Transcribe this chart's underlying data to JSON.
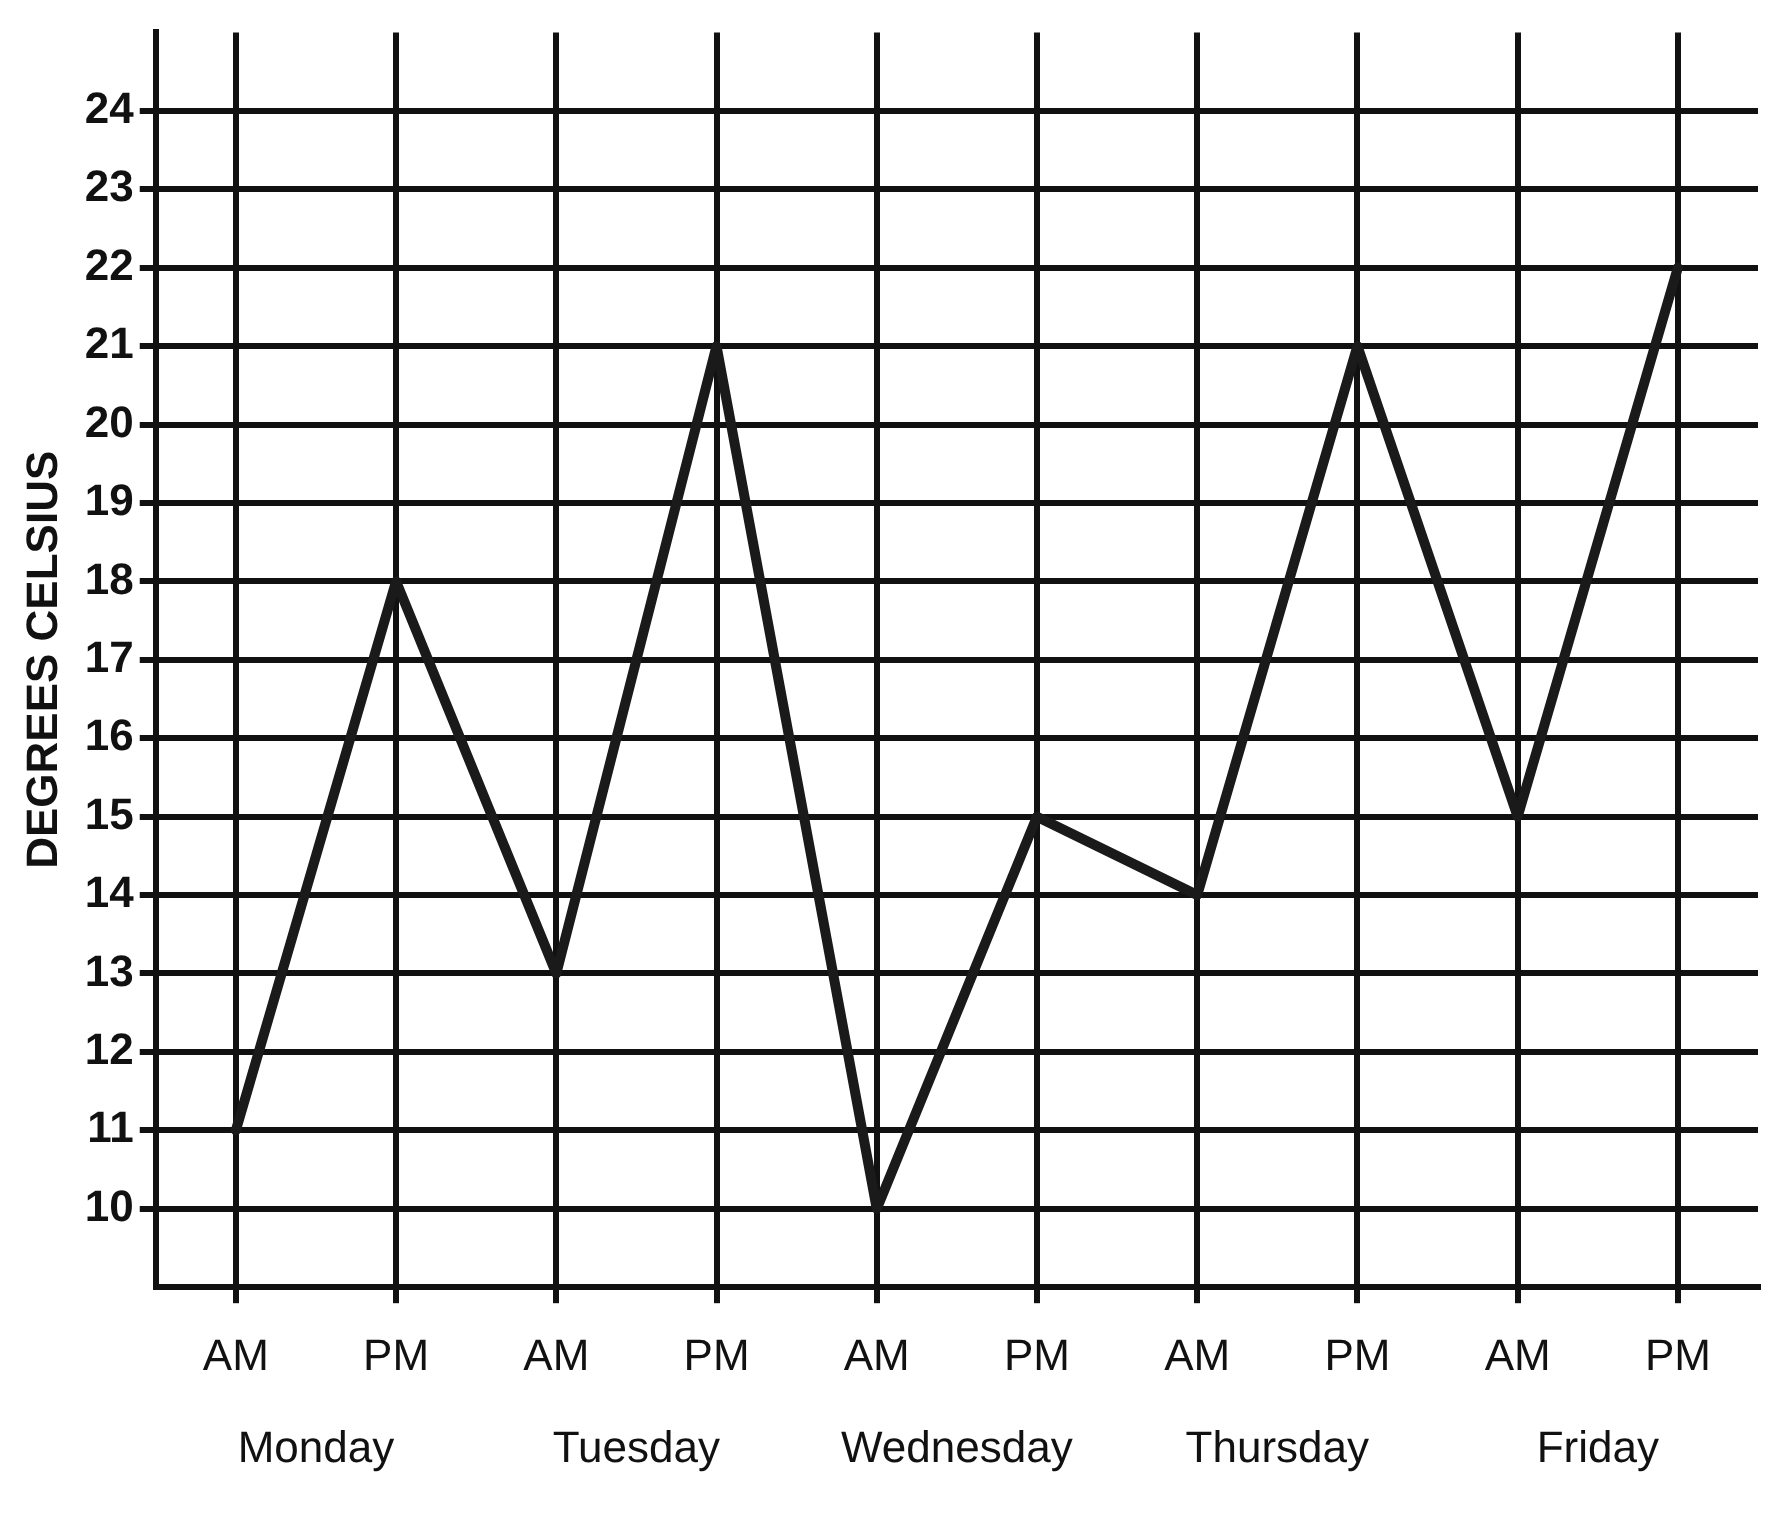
{
  "chart_data": {
    "type": "line",
    "ylabel": "DEGREES CELSIUS",
    "categories": [
      "AM",
      "PM",
      "AM",
      "PM",
      "AM",
      "PM",
      "AM",
      "PM",
      "AM",
      "PM"
    ],
    "series": [
      {
        "color": "#1a1a1a",
        "values": [
          11,
          18,
          13,
          21,
          10,
          15,
          14,
          21,
          15,
          22
        ]
      }
    ],
    "annotations": [
      "Monday",
      "Tuesday",
      "Wednesday",
      "Thursday",
      "Friday"
    ],
    "ylim": [
      9,
      25
    ],
    "yticks": [
      10,
      11,
      12,
      13,
      14,
      15,
      16,
      17,
      18,
      19,
      20,
      21,
      22,
      23,
      24
    ],
    "grid": true,
    "legend": false,
    "marker": "none",
    "line_style": "solid"
  }
}
